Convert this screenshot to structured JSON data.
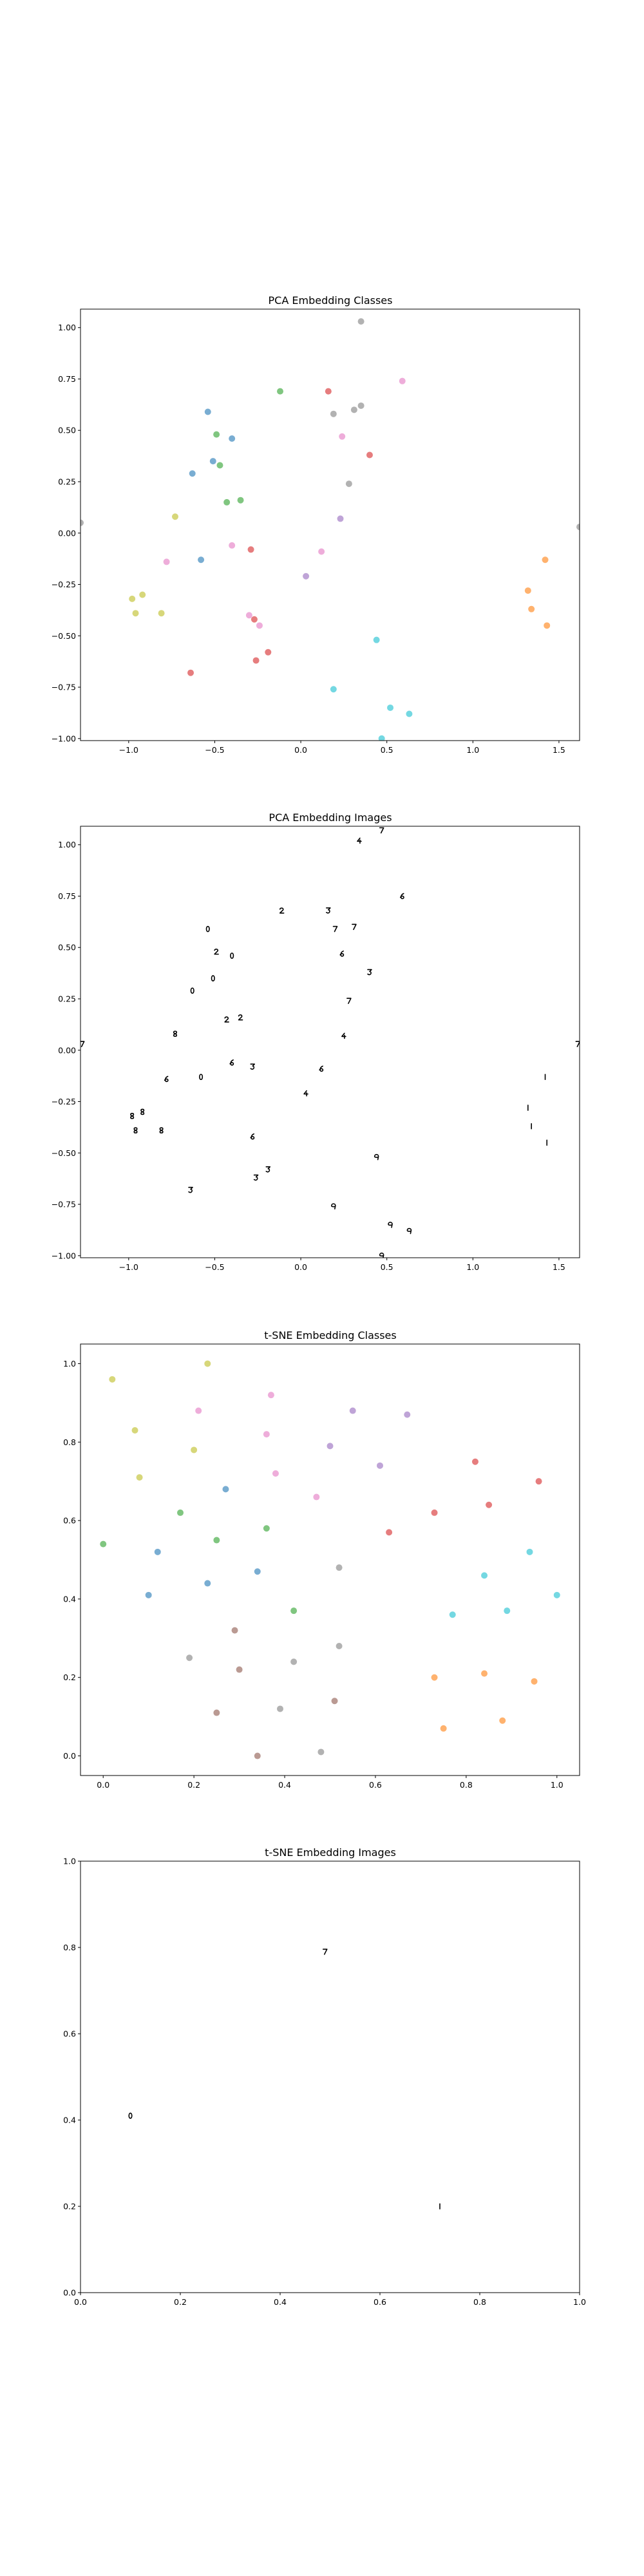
{
  "colors": {
    "0": "#1f77b4",
    "1": "#ff7f0e",
    "2": "#2ca02c",
    "3": "#d62728",
    "4": "#9467bd",
    "5": "#8c564b",
    "6": "#e377c2",
    "7": "#7f7f7f",
    "8": "#bcbd22",
    "9": "#17becf"
  },
  "chart_data": [
    {
      "type": "scatter",
      "title": "PCA Embedding Classes",
      "xlabel": "",
      "ylabel": "",
      "xlim": [
        -1.28,
        1.62
      ],
      "ylim": [
        -1.01,
        1.09
      ],
      "xticks": [
        -1.0,
        -0.5,
        0.0,
        0.5,
        1.0,
        1.5
      ],
      "xtick_labels": [
        "−1.0",
        "−0.5",
        "0.0",
        "0.5",
        "1.0",
        "1.5"
      ],
      "yticks": [
        -1.0,
        -0.75,
        -0.5,
        -0.25,
        0.0,
        0.25,
        0.5,
        0.75,
        1.0
      ],
      "ytick_labels": [
        "−1.00",
        "−0.75",
        "−0.50",
        "−0.25",
        "0.00",
        "0.25",
        "0.50",
        "0.75",
        "1.00"
      ],
      "points": [
        {
          "x": -0.54,
          "y": 0.59,
          "c": "0"
        },
        {
          "x": -0.4,
          "y": 0.46,
          "c": "0"
        },
        {
          "x": -0.63,
          "y": 0.29,
          "c": "0"
        },
        {
          "x": -0.51,
          "y": 0.35,
          "c": "0"
        },
        {
          "x": -0.58,
          "y": -0.13,
          "c": "0"
        },
        {
          "x": 1.42,
          "y": -0.13,
          "c": "1"
        },
        {
          "x": 1.32,
          "y": -0.28,
          "c": "1"
        },
        {
          "x": 1.34,
          "y": -0.37,
          "c": "1"
        },
        {
          "x": 1.43,
          "y": -0.45,
          "c": "1"
        },
        {
          "x": -0.12,
          "y": 0.69,
          "c": "2"
        },
        {
          "x": -0.49,
          "y": 0.48,
          "c": "2"
        },
        {
          "x": -0.47,
          "y": 0.33,
          "c": "2"
        },
        {
          "x": -0.43,
          "y": 0.15,
          "c": "2"
        },
        {
          "x": -0.35,
          "y": 0.16,
          "c": "2"
        },
        {
          "x": 0.16,
          "y": 0.69,
          "c": "3"
        },
        {
          "x": 0.4,
          "y": 0.38,
          "c": "3"
        },
        {
          "x": -0.29,
          "y": -0.08,
          "c": "3"
        },
        {
          "x": -0.64,
          "y": -0.68,
          "c": "3"
        },
        {
          "x": -0.27,
          "y": -0.42,
          "c": "3"
        },
        {
          "x": -0.19,
          "y": -0.58,
          "c": "3"
        },
        {
          "x": -0.26,
          "y": -0.62,
          "c": "3"
        },
        {
          "x": 0.23,
          "y": 0.07,
          "c": "4"
        },
        {
          "x": 0.03,
          "y": -0.21,
          "c": "4"
        },
        {
          "x": 0.59,
          "y": 0.74,
          "c": "6"
        },
        {
          "x": 0.24,
          "y": 0.47,
          "c": "6"
        },
        {
          "x": -0.4,
          "y": -0.06,
          "c": "6"
        },
        {
          "x": -0.78,
          "y": -0.14,
          "c": "6"
        },
        {
          "x": -0.3,
          "y": -0.4,
          "c": "6"
        },
        {
          "x": -0.24,
          "y": -0.45,
          "c": "6"
        },
        {
          "x": 0.12,
          "y": -0.09,
          "c": "6"
        },
        {
          "x": 0.35,
          "y": 1.03,
          "c": "7"
        },
        {
          "x": 0.19,
          "y": 0.58,
          "c": "7"
        },
        {
          "x": 0.31,
          "y": 0.6,
          "c": "7"
        },
        {
          "x": 0.35,
          "y": 0.62,
          "c": "7"
        },
        {
          "x": 0.28,
          "y": 0.24,
          "c": "7"
        },
        {
          "x": 1.62,
          "y": 0.03,
          "c": "7"
        },
        {
          "x": -1.28,
          "y": 0.05,
          "c": "7"
        },
        {
          "x": -0.73,
          "y": 0.08,
          "c": "8"
        },
        {
          "x": -0.98,
          "y": -0.32,
          "c": "8"
        },
        {
          "x": -0.92,
          "y": -0.3,
          "c": "8"
        },
        {
          "x": -0.96,
          "y": -0.39,
          "c": "8"
        },
        {
          "x": -0.81,
          "y": -0.39,
          "c": "8"
        },
        {
          "x": 0.44,
          "y": -0.52,
          "c": "9"
        },
        {
          "x": 0.19,
          "y": -0.76,
          "c": "9"
        },
        {
          "x": 0.52,
          "y": -0.85,
          "c": "9"
        },
        {
          "x": 0.63,
          "y": -0.88,
          "c": "9"
        },
        {
          "x": 0.47,
          "y": -1.0,
          "c": "9"
        }
      ]
    },
    {
      "type": "scatter",
      "title": "PCA Embedding Images",
      "xlabel": "",
      "ylabel": "",
      "xlim": [
        -1.28,
        1.62
      ],
      "ylim": [
        -1.01,
        1.09
      ],
      "xticks": [
        -1.0,
        -0.5,
        0.0,
        0.5,
        1.0,
        1.5
      ],
      "xtick_labels": [
        "−1.0",
        "−0.5",
        "0.0",
        "0.5",
        "1.0",
        "1.5"
      ],
      "yticks": [
        -1.0,
        -0.75,
        -0.5,
        -0.25,
        0.0,
        0.25,
        0.5,
        0.75,
        1.0
      ],
      "ytick_labels": [
        "−1.00",
        "−0.75",
        "−0.50",
        "−0.25",
        "0.00",
        "0.25",
        "0.50",
        "0.75",
        "1.00"
      ],
      "points": [
        {
          "x": 0.34,
          "y": 1.02,
          "g": "4"
        },
        {
          "x": 0.47,
          "y": 1.07,
          "g": "7"
        },
        {
          "x": -0.11,
          "y": 0.68,
          "g": "2"
        },
        {
          "x": 0.16,
          "y": 0.68,
          "g": "3"
        },
        {
          "x": 0.59,
          "y": 0.75,
          "g": "6"
        },
        {
          "x": -0.54,
          "y": 0.59,
          "g": "0"
        },
        {
          "x": 0.2,
          "y": 0.59,
          "g": "7"
        },
        {
          "x": 0.31,
          "y": 0.6,
          "g": "7"
        },
        {
          "x": -0.49,
          "y": 0.48,
          "g": "2"
        },
        {
          "x": -0.4,
          "y": 0.46,
          "g": "0"
        },
        {
          "x": 0.24,
          "y": 0.47,
          "g": "6"
        },
        {
          "x": 0.4,
          "y": 0.38,
          "g": "3"
        },
        {
          "x": -0.51,
          "y": 0.35,
          "g": "0"
        },
        {
          "x": -0.63,
          "y": 0.29,
          "g": "0"
        },
        {
          "x": 0.28,
          "y": 0.24,
          "g": "7"
        },
        {
          "x": -0.43,
          "y": 0.15,
          "g": "2"
        },
        {
          "x": -0.35,
          "y": 0.16,
          "g": "2"
        },
        {
          "x": -0.73,
          "y": 0.08,
          "g": "8"
        },
        {
          "x": 0.25,
          "y": 0.07,
          "g": "4"
        },
        {
          "x": -1.27,
          "y": 0.03,
          "g": "7"
        },
        {
          "x": 1.61,
          "y": 0.03,
          "g": "7"
        },
        {
          "x": -0.4,
          "y": -0.06,
          "g": "6"
        },
        {
          "x": -0.28,
          "y": -0.08,
          "g": "3"
        },
        {
          "x": 0.12,
          "y": -0.09,
          "g": "6"
        },
        {
          "x": -0.78,
          "y": -0.14,
          "g": "6"
        },
        {
          "x": -0.58,
          "y": -0.13,
          "g": "0"
        },
        {
          "x": 1.42,
          "y": -0.13,
          "g": "1"
        },
        {
          "x": 0.03,
          "y": -0.21,
          "g": "4"
        },
        {
          "x": 1.32,
          "y": -0.28,
          "g": "1"
        },
        {
          "x": -0.98,
          "y": -0.32,
          "g": "8"
        },
        {
          "x": -0.92,
          "y": -0.3,
          "g": "8"
        },
        {
          "x": 1.34,
          "y": -0.37,
          "g": "1"
        },
        {
          "x": -0.96,
          "y": -0.39,
          "g": "8"
        },
        {
          "x": -0.81,
          "y": -0.39,
          "g": "8"
        },
        {
          "x": -0.28,
          "y": -0.42,
          "g": "6"
        },
        {
          "x": 1.43,
          "y": -0.45,
          "g": "1"
        },
        {
          "x": 0.44,
          "y": -0.52,
          "g": "9"
        },
        {
          "x": -0.19,
          "y": -0.58,
          "g": "3"
        },
        {
          "x": -0.26,
          "y": -0.62,
          "g": "3"
        },
        {
          "x": -0.64,
          "y": -0.68,
          "g": "3"
        },
        {
          "x": 0.19,
          "y": -0.76,
          "g": "9"
        },
        {
          "x": 0.52,
          "y": -0.85,
          "g": "9"
        },
        {
          "x": 0.63,
          "y": -0.88,
          "g": "9"
        },
        {
          "x": 0.47,
          "y": -1.0,
          "g": "9"
        }
      ]
    },
    {
      "type": "scatter",
      "title": "t-SNE Embedding Classes",
      "xlabel": "",
      "ylabel": "",
      "xlim": [
        -0.05,
        1.05
      ],
      "ylim": [
        -0.05,
        1.05
      ],
      "xticks": [
        0.0,
        0.2,
        0.4,
        0.6,
        0.8,
        1.0
      ],
      "xtick_labels": [
        "0.0",
        "0.2",
        "0.4",
        "0.6",
        "0.8",
        "1.0"
      ],
      "yticks": [
        0.0,
        0.2,
        0.4,
        0.6,
        0.8,
        1.0
      ],
      "ytick_labels": [
        "0.0",
        "0.2",
        "0.4",
        "0.6",
        "0.8",
        "1.0"
      ],
      "points": [
        {
          "x": 0.02,
          "y": 0.96,
          "c": "8"
        },
        {
          "x": 0.23,
          "y": 1.0,
          "c": "8"
        },
        {
          "x": 0.07,
          "y": 0.83,
          "c": "8"
        },
        {
          "x": 0.08,
          "y": 0.71,
          "c": "8"
        },
        {
          "x": 0.2,
          "y": 0.78,
          "c": "8"
        },
        {
          "x": 0.21,
          "y": 0.88,
          "c": "6"
        },
        {
          "x": 0.37,
          "y": 0.92,
          "c": "6"
        },
        {
          "x": 0.36,
          "y": 0.82,
          "c": "6"
        },
        {
          "x": 0.38,
          "y": 0.72,
          "c": "6"
        },
        {
          "x": 0.47,
          "y": 0.66,
          "c": "6"
        },
        {
          "x": 0.55,
          "y": 0.88,
          "c": "4"
        },
        {
          "x": 0.67,
          "y": 0.87,
          "c": "4"
        },
        {
          "x": 0.5,
          "y": 0.79,
          "c": "4"
        },
        {
          "x": 0.61,
          "y": 0.74,
          "c": "4"
        },
        {
          "x": 0.27,
          "y": 0.68,
          "c": "0"
        },
        {
          "x": 0.12,
          "y": 0.52,
          "c": "0"
        },
        {
          "x": 0.1,
          "y": 0.41,
          "c": "0"
        },
        {
          "x": 0.23,
          "y": 0.44,
          "c": "0"
        },
        {
          "x": 0.34,
          "y": 0.47,
          "c": "0"
        },
        {
          "x": -0.0,
          "y": 0.54,
          "c": "2"
        },
        {
          "x": 0.17,
          "y": 0.62,
          "c": "2"
        },
        {
          "x": 0.25,
          "y": 0.55,
          "c": "2"
        },
        {
          "x": 0.36,
          "y": 0.58,
          "c": "2"
        },
        {
          "x": 0.42,
          "y": 0.37,
          "c": "2"
        },
        {
          "x": 0.82,
          "y": 0.75,
          "c": "3"
        },
        {
          "x": 0.85,
          "y": 0.64,
          "c": "3"
        },
        {
          "x": 0.96,
          "y": 0.7,
          "c": "3"
        },
        {
          "x": 0.73,
          "y": 0.62,
          "c": "3"
        },
        {
          "x": 0.63,
          "y": 0.57,
          "c": "3"
        },
        {
          "x": 0.94,
          "y": 0.52,
          "c": "9"
        },
        {
          "x": 0.84,
          "y": 0.46,
          "c": "9"
        },
        {
          "x": 1.0,
          "y": 0.41,
          "c": "9"
        },
        {
          "x": 0.77,
          "y": 0.36,
          "c": "9"
        },
        {
          "x": 0.89,
          "y": 0.37,
          "c": "9"
        },
        {
          "x": 0.73,
          "y": 0.2,
          "c": "1"
        },
        {
          "x": 0.84,
          "y": 0.21,
          "c": "1"
        },
        {
          "x": 0.95,
          "y": 0.19,
          "c": "1"
        },
        {
          "x": 0.75,
          "y": 0.07,
          "c": "1"
        },
        {
          "x": 0.88,
          "y": 0.09,
          "c": "1"
        },
        {
          "x": 0.19,
          "y": 0.25,
          "c": "7"
        },
        {
          "x": 0.52,
          "y": 0.48,
          "c": "7"
        },
        {
          "x": 0.52,
          "y": 0.28,
          "c": "7"
        },
        {
          "x": 0.42,
          "y": 0.24,
          "c": "7"
        },
        {
          "x": 0.39,
          "y": 0.12,
          "c": "7"
        },
        {
          "x": 0.48,
          "y": 0.01,
          "c": "7"
        },
        {
          "x": 0.29,
          "y": 0.32,
          "c": "5"
        },
        {
          "x": 0.3,
          "y": 0.22,
          "c": "5"
        },
        {
          "x": 0.51,
          "y": 0.14,
          "c": "5"
        },
        {
          "x": 0.25,
          "y": 0.11,
          "c": "5"
        },
        {
          "x": 0.34,
          "y": 0.0,
          "c": "5"
        }
      ]
    },
    {
      "type": "scatter",
      "title": "t-SNE Embedding Images",
      "xlabel": "",
      "ylabel": "",
      "xlim": [
        0.0,
        1.0
      ],
      "ylim": [
        0.0,
        1.0
      ],
      "xticks": [
        0.0,
        0.2,
        0.4,
        0.6,
        0.8,
        1.0
      ],
      "xtick_labels": [
        "0.0",
        "0.2",
        "0.4",
        "0.6",
        "0.8",
        "1.0"
      ],
      "yticks": [
        0.0,
        0.2,
        0.4,
        0.6,
        0.8,
        1.0
      ],
      "ytick_labels": [
        "0.0",
        "0.2",
        "0.4",
        "0.6",
        "0.8",
        "1.0"
      ],
      "points": [
        {
          "x": 0.49,
          "y": 0.79,
          "g": "7"
        },
        {
          "x": 0.1,
          "y": 0.41,
          "g": "0"
        },
        {
          "x": 0.72,
          "y": 0.2,
          "g": "1"
        }
      ]
    }
  ]
}
